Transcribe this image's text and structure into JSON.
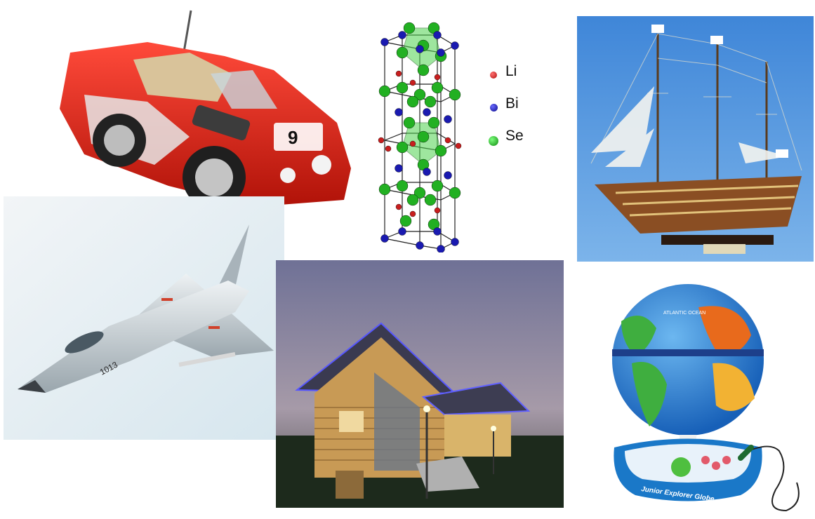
{
  "crystal_legend": {
    "li": "Li",
    "bi": "Bi",
    "se": "Se",
    "colors": {
      "li": "#c81e1e",
      "bi": "#1a1ab0",
      "se": "#22b022"
    }
  },
  "car": {
    "number": "9"
  },
  "jet": {
    "number": "1013"
  },
  "globe": {
    "ocean_label": "ATLANTIC\nOCEAN",
    "brand_label": "Junior Explorer Globe"
  }
}
